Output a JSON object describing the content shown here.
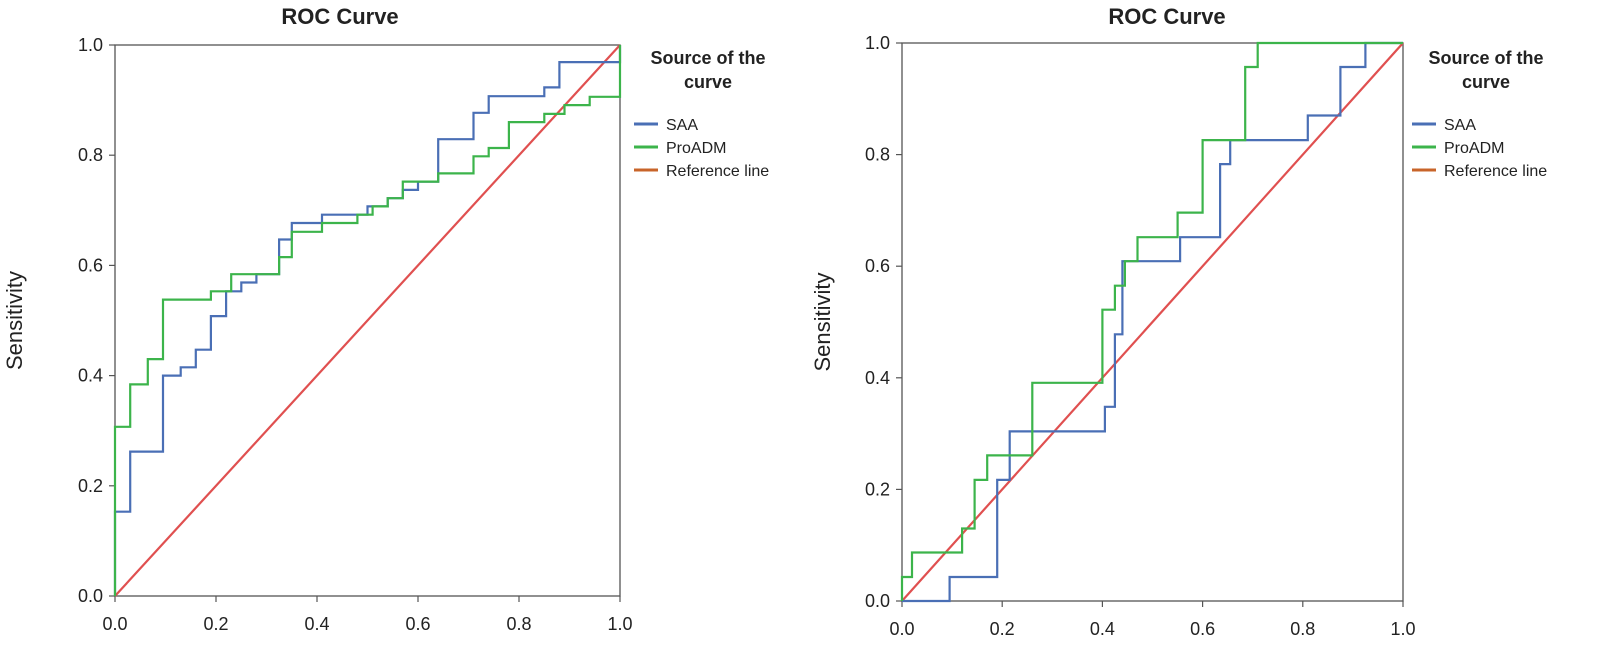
{
  "chart_data": [
    {
      "type": "line",
      "title": "ROC Curve",
      "xlabel": "",
      "ylabel": "Sensitivity",
      "xlim": [
        0,
        1
      ],
      "ylim": [
        0,
        1
      ],
      "xticks": [
        "0.0",
        "0.2",
        "0.4",
        "0.6",
        "0.8",
        "1.0"
      ],
      "yticks": [
        "0.0",
        "0.2",
        "0.4",
        "0.6",
        "0.8",
        "1.0"
      ],
      "legend_title": [
        "Source of the",
        "curve"
      ],
      "legend_position": "right",
      "series": [
        {
          "name": "SAA",
          "color": "#4a6fb5",
          "points": [
            [
              0,
              0
            ],
            [
              0,
              0.153
            ],
            [
              0.03,
              0.153
            ],
            [
              0.03,
              0.262
            ],
            [
              0.095,
              0.262
            ],
            [
              0.095,
              0.4
            ],
            [
              0.13,
              0.4
            ],
            [
              0.13,
              0.415
            ],
            [
              0.16,
              0.415
            ],
            [
              0.16,
              0.447
            ],
            [
              0.19,
              0.447
            ],
            [
              0.19,
              0.508
            ],
            [
              0.22,
              0.508
            ],
            [
              0.22,
              0.553
            ],
            [
              0.25,
              0.553
            ],
            [
              0.25,
              0.569
            ],
            [
              0.28,
              0.569
            ],
            [
              0.28,
              0.584
            ],
            [
              0.325,
              0.584
            ],
            [
              0.325,
              0.647
            ],
            [
              0.35,
              0.647
            ],
            [
              0.35,
              0.677
            ],
            [
              0.41,
              0.677
            ],
            [
              0.41,
              0.692
            ],
            [
              0.5,
              0.692
            ],
            [
              0.5,
              0.707
            ],
            [
              0.54,
              0.707
            ],
            [
              0.54,
              0.722
            ],
            [
              0.57,
              0.722
            ],
            [
              0.57,
              0.737
            ],
            [
              0.6,
              0.737
            ],
            [
              0.6,
              0.752
            ],
            [
              0.64,
              0.752
            ],
            [
              0.64,
              0.829
            ],
            [
              0.71,
              0.829
            ],
            [
              0.71,
              0.877
            ],
            [
              0.74,
              0.877
            ],
            [
              0.74,
              0.907
            ],
            [
              0.85,
              0.907
            ],
            [
              0.85,
              0.923
            ],
            [
              0.88,
              0.923
            ],
            [
              0.88,
              0.969
            ],
            [
              1,
              0.969
            ],
            [
              1,
              1
            ]
          ]
        },
        {
          "name": "ProADM",
          "color": "#3cb44b",
          "points": [
            [
              0,
              0
            ],
            [
              0,
              0.307
            ],
            [
              0.03,
              0.307
            ],
            [
              0.03,
              0.384
            ],
            [
              0.065,
              0.384
            ],
            [
              0.065,
              0.43
            ],
            [
              0.095,
              0.43
            ],
            [
              0.095,
              0.538
            ],
            [
              0.19,
              0.538
            ],
            [
              0.19,
              0.553
            ],
            [
              0.23,
              0.553
            ],
            [
              0.23,
              0.584
            ],
            [
              0.325,
              0.584
            ],
            [
              0.325,
              0.615
            ],
            [
              0.35,
              0.615
            ],
            [
              0.35,
              0.661
            ],
            [
              0.41,
              0.661
            ],
            [
              0.41,
              0.677
            ],
            [
              0.48,
              0.677
            ],
            [
              0.48,
              0.692
            ],
            [
              0.51,
              0.692
            ],
            [
              0.51,
              0.707
            ],
            [
              0.54,
              0.707
            ],
            [
              0.54,
              0.722
            ],
            [
              0.57,
              0.722
            ],
            [
              0.57,
              0.752
            ],
            [
              0.64,
              0.752
            ],
            [
              0.64,
              0.767
            ],
            [
              0.71,
              0.767
            ],
            [
              0.71,
              0.798
            ],
            [
              0.74,
              0.798
            ],
            [
              0.74,
              0.813
            ],
            [
              0.78,
              0.813
            ],
            [
              0.78,
              0.86
            ],
            [
              0.85,
              0.86
            ],
            [
              0.85,
              0.875
            ],
            [
              0.89,
              0.875
            ],
            [
              0.89,
              0.891
            ],
            [
              0.94,
              0.891
            ],
            [
              0.94,
              0.906
            ],
            [
              1,
              0.906
            ],
            [
              1,
              1
            ]
          ]
        },
        {
          "name": "Reference line",
          "color": "#e05050",
          "legend_color": "#c8642a",
          "points": [
            [
              0,
              0
            ],
            [
              1,
              1
            ]
          ]
        }
      ]
    },
    {
      "type": "line",
      "title": "ROC Curve",
      "xlabel": "",
      "ylabel": "Sensitivity",
      "xlim": [
        0,
        1
      ],
      "ylim": [
        0,
        1
      ],
      "xticks": [
        "0.0",
        "0.2",
        "0.4",
        "0.6",
        "0.8",
        "1.0"
      ],
      "yticks": [
        "0.0",
        "0.2",
        "0.4",
        "0.6",
        "0.8",
        "1.0"
      ],
      "legend_title": [
        "Source of the",
        "curve"
      ],
      "legend_position": "right",
      "series": [
        {
          "name": "SAA",
          "color": "#4a6fb5",
          "points": [
            [
              0,
              0
            ],
            [
              0.095,
              0
            ],
            [
              0.095,
              0.043
            ],
            [
              0.19,
              0.043
            ],
            [
              0.19,
              0.217
            ],
            [
              0.215,
              0.217
            ],
            [
              0.215,
              0.304
            ],
            [
              0.405,
              0.304
            ],
            [
              0.405,
              0.348
            ],
            [
              0.425,
              0.348
            ],
            [
              0.425,
              0.478
            ],
            [
              0.44,
              0.478
            ],
            [
              0.44,
              0.609
            ],
            [
              0.555,
              0.609
            ],
            [
              0.555,
              0.652
            ],
            [
              0.635,
              0.652
            ],
            [
              0.635,
              0.783
            ],
            [
              0.655,
              0.783
            ],
            [
              0.655,
              0.826
            ],
            [
              0.81,
              0.826
            ],
            [
              0.81,
              0.87
            ],
            [
              0.875,
              0.87
            ],
            [
              0.875,
              0.957
            ],
            [
              0.925,
              0.957
            ],
            [
              0.925,
              1
            ],
            [
              1,
              1
            ]
          ]
        },
        {
          "name": "ProADM",
          "color": "#3cb44b",
          "points": [
            [
              0,
              0
            ],
            [
              0,
              0.043
            ],
            [
              0.02,
              0.043
            ],
            [
              0.02,
              0.087
            ],
            [
              0.12,
              0.087
            ],
            [
              0.12,
              0.13
            ],
            [
              0.145,
              0.13
            ],
            [
              0.145,
              0.217
            ],
            [
              0.17,
              0.217
            ],
            [
              0.17,
              0.261
            ],
            [
              0.26,
              0.261
            ],
            [
              0.26,
              0.391
            ],
            [
              0.4,
              0.391
            ],
            [
              0.4,
              0.522
            ],
            [
              0.425,
              0.522
            ],
            [
              0.425,
              0.565
            ],
            [
              0.445,
              0.565
            ],
            [
              0.445,
              0.609
            ],
            [
              0.47,
              0.609
            ],
            [
              0.47,
              0.652
            ],
            [
              0.55,
              0.652
            ],
            [
              0.55,
              0.696
            ],
            [
              0.6,
              0.696
            ],
            [
              0.6,
              0.826
            ],
            [
              0.685,
              0.826
            ],
            [
              0.685,
              0.957
            ],
            [
              0.71,
              0.957
            ],
            [
              0.71,
              1
            ],
            [
              1,
              1
            ]
          ]
        },
        {
          "name": "Reference line",
          "color": "#e05050",
          "legend_color": "#c8642a",
          "points": [
            [
              0,
              0
            ],
            [
              1,
              1
            ]
          ]
        }
      ]
    }
  ]
}
